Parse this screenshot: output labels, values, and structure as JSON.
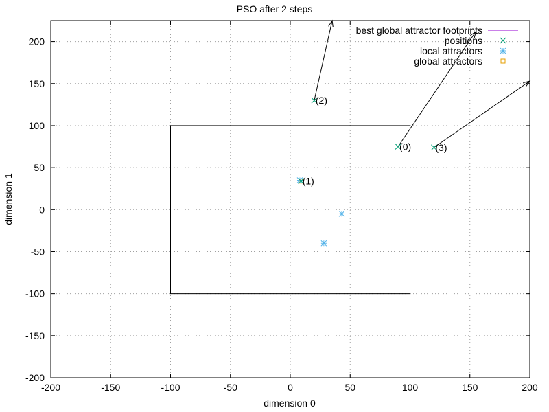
{
  "chart_data": {
    "type": "scatter",
    "title": "PSO after 2 steps",
    "xlabel": "dimension 0",
    "ylabel": "dimension 1",
    "xlim": [
      -200,
      200
    ],
    "ylim": [
      -200,
      225
    ],
    "xticks": [
      -200,
      -150,
      -100,
      -50,
      0,
      50,
      100,
      150,
      200
    ],
    "yticks": [
      -200,
      -150,
      -100,
      -50,
      0,
      50,
      100,
      150,
      200
    ],
    "grid": true,
    "legend_position": "top-right",
    "legend": [
      {
        "label": "best global attractor footprints",
        "marker": "line",
        "color": "#9400d3"
      },
      {
        "label": "positions",
        "marker": "x",
        "color": "#009e73"
      },
      {
        "label": "local attractors",
        "marker": "star",
        "color": "#56b4e9"
      },
      {
        "label": "global attractors",
        "marker": "square",
        "color": "#e69f00"
      }
    ],
    "bounds_box": {
      "x": [
        -100,
        100
      ],
      "y": [
        -100,
        100
      ]
    },
    "positions": [
      {
        "id": "(0)",
        "x": 90,
        "y": 75,
        "vx": 155,
        "vy": 212
      },
      {
        "id": "(1)",
        "x": 9,
        "y": 34
      },
      {
        "id": "(2)",
        "x": 20,
        "y": 130,
        "vx": 35,
        "vy": 225
      },
      {
        "id": "(3)",
        "x": 120,
        "y": 74,
        "vx": 200,
        "vy": 153
      }
    ],
    "local_attractors": [
      {
        "x": 8,
        "y": 35
      },
      {
        "x": 43,
        "y": -5
      },
      {
        "x": 28,
        "y": -40
      }
    ],
    "global_attractors": [
      {
        "x": 9,
        "y": 34
      }
    ]
  }
}
